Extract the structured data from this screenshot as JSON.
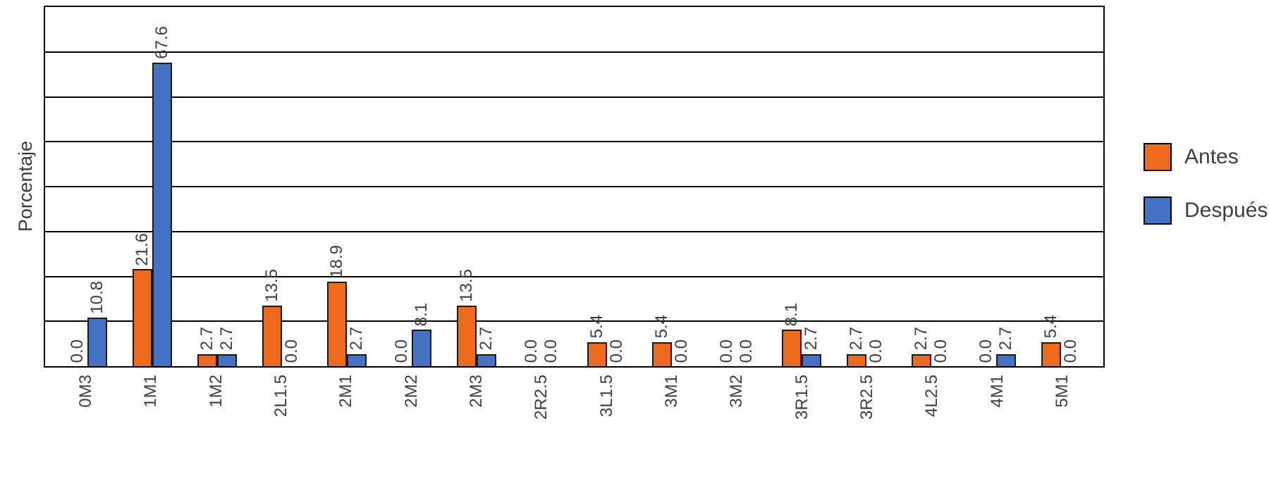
{
  "chart_data": {
    "type": "bar",
    "title": "",
    "xlabel": "",
    "ylabel": "Porcentaje",
    "ylim": [
      0,
      80
    ],
    "grid_step": 10,
    "grid": "horizontal",
    "legend_position": "right",
    "value_labels": "rotated-90-above-bars",
    "categories": [
      "0M3",
      "1M1",
      "1M2",
      "2L1.5",
      "2M1",
      "2M2",
      "2M3",
      "2R2.5",
      "3L1.5",
      "3M1",
      "3M2",
      "3R1.5",
      "3R2.5",
      "4L2.5",
      "4M1",
      "5M1"
    ],
    "series": [
      {
        "name": "Antes",
        "color": "#EE6B1E",
        "values": [
          0.0,
          21.6,
          2.7,
          13.5,
          18.9,
          0.0,
          13.5,
          0.0,
          5.4,
          5.4,
          0.0,
          8.1,
          2.7,
          2.7,
          0.0,
          5.4
        ]
      },
      {
        "name": "Después",
        "color": "#4472C4",
        "values": [
          10.8,
          67.6,
          2.7,
          0.0,
          2.7,
          8.1,
          2.7,
          0.0,
          0.0,
          0.0,
          0.0,
          2.7,
          0.0,
          0.0,
          2.7,
          0.0
        ]
      }
    ]
  }
}
